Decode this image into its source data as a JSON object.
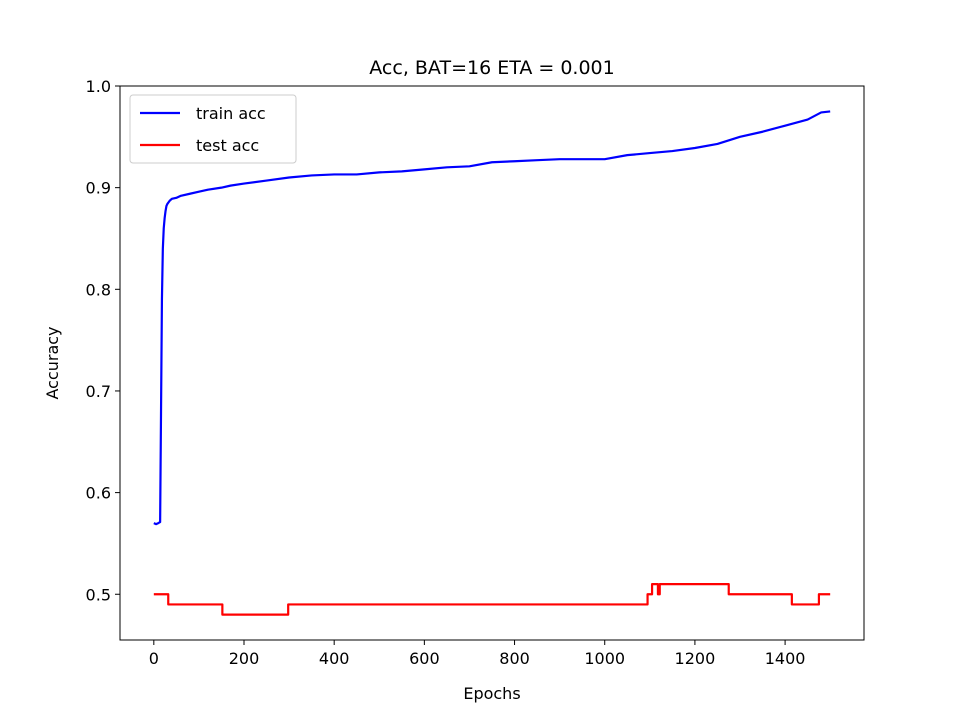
{
  "chart_data": {
    "type": "line",
    "title": "Acc, BAT=16 ETA = 0.001",
    "xlabel": "Epochs",
    "ylabel": "Accuracy",
    "xlim": [
      -75,
      1575
    ],
    "ylim": [
      0.455,
      1.0
    ],
    "xticks": [
      "0",
      "200",
      "400",
      "600",
      "800",
      "1000",
      "1200",
      "1400"
    ],
    "yticks": [
      "0.5",
      "0.6",
      "0.7",
      "0.8",
      "0.9",
      "1.0"
    ],
    "grid": false,
    "legend_position": "upper-left",
    "series": [
      {
        "name": "train acc",
        "color": "#0000ff",
        "x": [
          0,
          5,
          10,
          14,
          16,
          18,
          20,
          22,
          24,
          26,
          28,
          30,
          35,
          40,
          50,
          60,
          80,
          100,
          120,
          150,
          170,
          200,
          250,
          300,
          350,
          400,
          450,
          500,
          550,
          600,
          650,
          700,
          750,
          800,
          850,
          900,
          950,
          1000,
          1050,
          1100,
          1150,
          1200,
          1250,
          1300,
          1350,
          1400,
          1450,
          1480,
          1500
        ],
        "y": [
          0.57,
          0.569,
          0.57,
          0.571,
          0.68,
          0.79,
          0.84,
          0.86,
          0.87,
          0.877,
          0.882,
          0.884,
          0.887,
          0.889,
          0.89,
          0.892,
          0.894,
          0.896,
          0.898,
          0.9,
          0.902,
          0.904,
          0.907,
          0.91,
          0.912,
          0.913,
          0.913,
          0.915,
          0.916,
          0.918,
          0.92,
          0.921,
          0.925,
          0.926,
          0.927,
          0.928,
          0.928,
          0.928,
          0.932,
          0.934,
          0.936,
          0.939,
          0.943,
          0.95,
          0.955,
          0.961,
          0.967,
          0.974,
          0.975
        ]
      },
      {
        "name": "test acc",
        "color": "#ff0000",
        "x": [
          0,
          32,
          32,
          152,
          152,
          298,
          298,
          1095,
          1095,
          1105,
          1105,
          1118,
          1118,
          1122,
          1122,
          1275,
          1275,
          1415,
          1415,
          1475,
          1475,
          1500
        ],
        "y": [
          0.5,
          0.5,
          0.49,
          0.49,
          0.48,
          0.48,
          0.49,
          0.49,
          0.5,
          0.5,
          0.51,
          0.51,
          0.5,
          0.5,
          0.51,
          0.51,
          0.5,
          0.5,
          0.49,
          0.49,
          0.5,
          0.5
        ]
      }
    ]
  }
}
